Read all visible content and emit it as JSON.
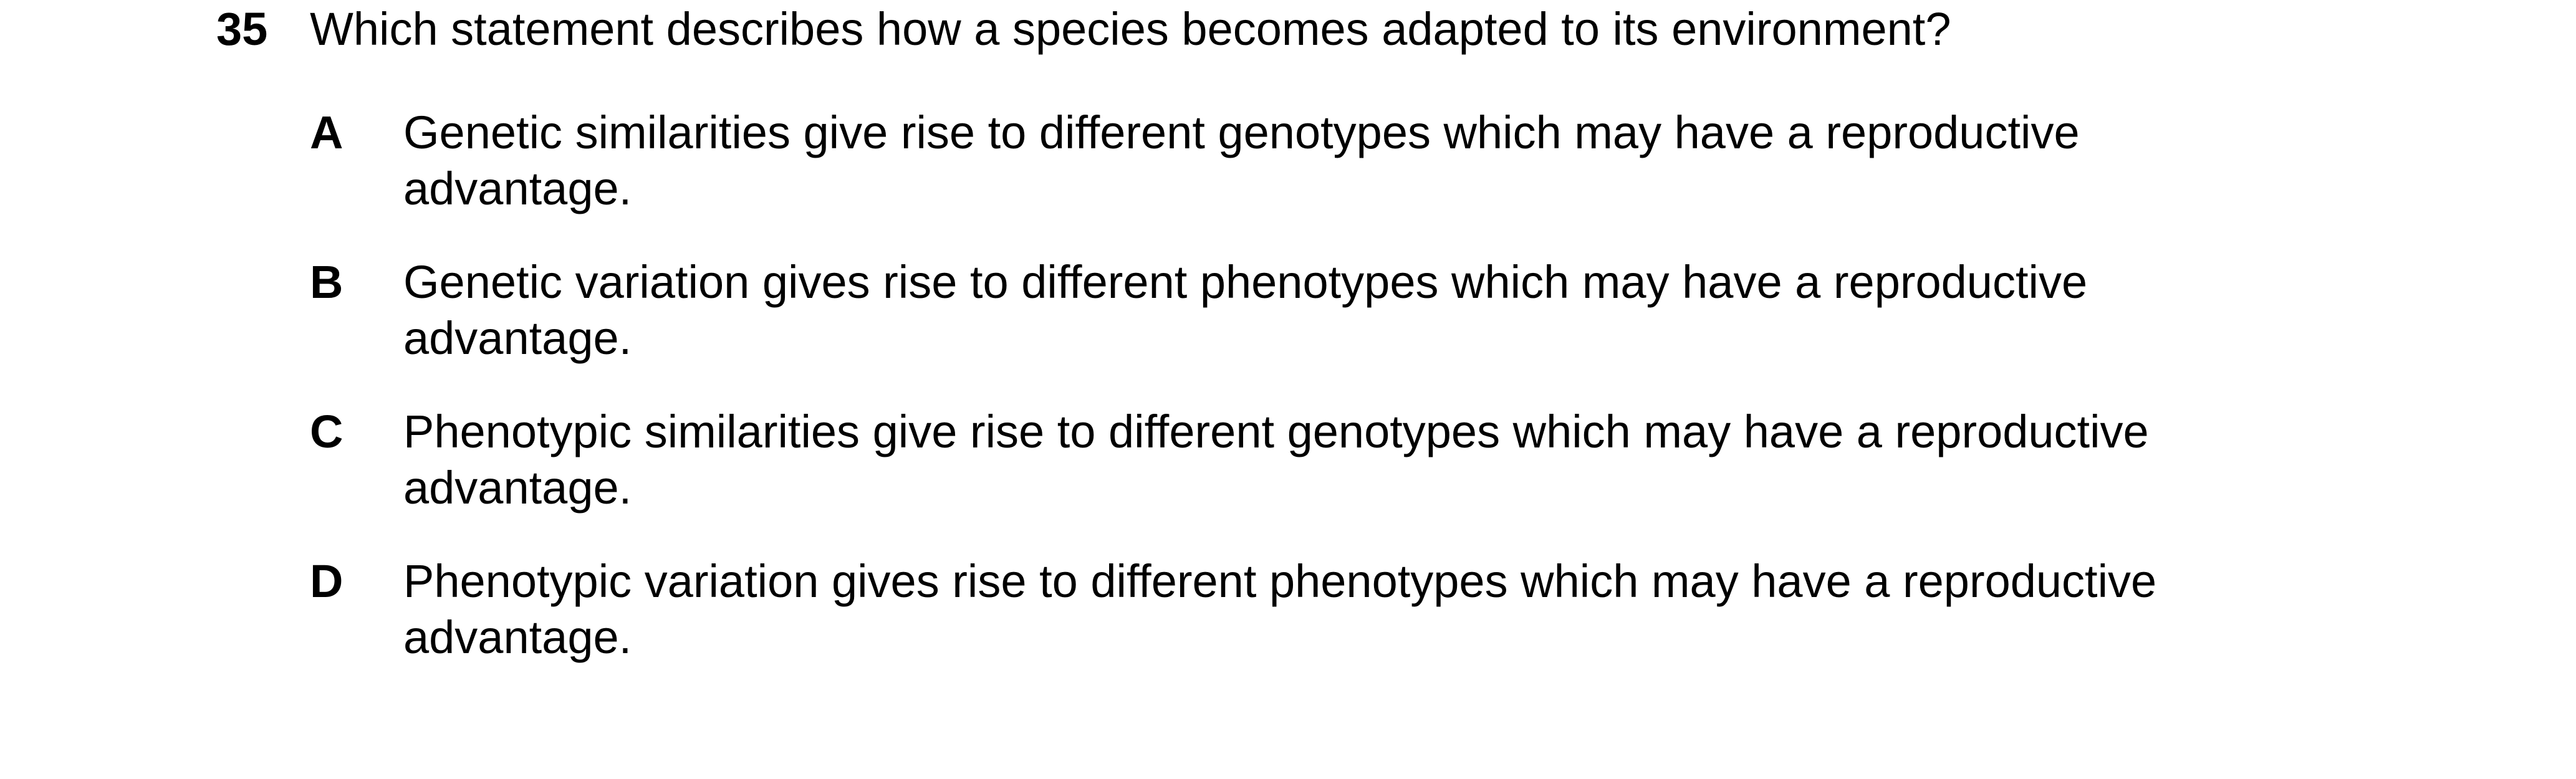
{
  "question": {
    "number": "35",
    "text": "Which statement describes how a species becomes adapted to its environment?"
  },
  "options": [
    {
      "letter": "A",
      "line1": "Genetic similarities give rise to different genotypes which may have a reproductive",
      "line2": "advantage."
    },
    {
      "letter": "B",
      "line1": "Genetic variation gives rise to different phenotypes which may have a reproductive",
      "line2": "advantage."
    },
    {
      "letter": "C",
      "line1": "Phenotypic similarities give rise to different genotypes which may have a reproductive",
      "line2": "advantage."
    },
    {
      "letter": "D",
      "line1": "Phenotypic variation gives rise to different phenotypes which may have a reproductive",
      "line2": "advantage."
    }
  ]
}
